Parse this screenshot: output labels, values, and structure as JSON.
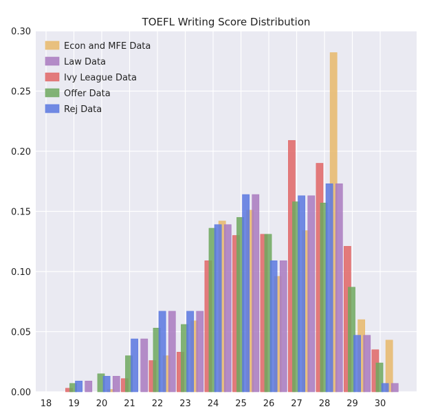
{
  "chart_data": {
    "type": "bar",
    "title": "TOEFL Writing Score Distribution",
    "xlabel": "",
    "ylabel": "",
    "x_ticks": [
      "18",
      "19",
      "20",
      "21",
      "22",
      "23",
      "24",
      "25",
      "26",
      "27",
      "28",
      "29",
      "30"
    ],
    "y_ticks": [
      "0.00",
      "0.05",
      "0.10",
      "0.15",
      "0.20",
      "0.25",
      "0.30"
    ],
    "ylim": [
      0,
      0.3
    ],
    "grid": true,
    "legend_position": "top-left",
    "series": [
      {
        "name": "Econ and MFE Data",
        "color": "#E8B96B",
        "points": [
          {
            "x": 20.2,
            "y": 0.002
          },
          {
            "x": 22.2,
            "y": 0.03
          },
          {
            "x": 23.2,
            "y": 0.059
          },
          {
            "x": 24.2,
            "y": 0.142
          },
          {
            "x": 25.2,
            "y": 0.151
          },
          {
            "x": 26.2,
            "y": 0.096
          },
          {
            "x": 27.2,
            "y": 0.134
          },
          {
            "x": 28.2,
            "y": 0.282
          },
          {
            "x": 29.2,
            "y": 0.06
          },
          {
            "x": 30.2,
            "y": 0.043
          }
        ]
      },
      {
        "name": "Law Data",
        "color": "#A97ABF",
        "points": [
          {
            "x": 19.4,
            "y": 0.009
          },
          {
            "x": 20.4,
            "y": 0.013
          },
          {
            "x": 21.4,
            "y": 0.044
          },
          {
            "x": 22.4,
            "y": 0.067
          },
          {
            "x": 23.4,
            "y": 0.067
          },
          {
            "x": 24.4,
            "y": 0.139
          },
          {
            "x": 25.4,
            "y": 0.164
          },
          {
            "x": 26.4,
            "y": 0.109
          },
          {
            "x": 27.4,
            "y": 0.163
          },
          {
            "x": 28.4,
            "y": 0.173
          },
          {
            "x": 29.4,
            "y": 0.047
          },
          {
            "x": 30.4,
            "y": 0.007
          }
        ]
      },
      {
        "name": "Ivy League Data",
        "color": "#E06666",
        "points": [
          {
            "x": 18.7,
            "y": 0.003
          },
          {
            "x": 20.7,
            "y": 0.011
          },
          {
            "x": 21.7,
            "y": 0.026
          },
          {
            "x": 22.7,
            "y": 0.033
          },
          {
            "x": 23.7,
            "y": 0.109
          },
          {
            "x": 24.7,
            "y": 0.13
          },
          {
            "x": 25.7,
            "y": 0.131
          },
          {
            "x": 26.7,
            "y": 0.209
          },
          {
            "x": 27.7,
            "y": 0.19
          },
          {
            "x": 28.7,
            "y": 0.121
          },
          {
            "x": 29.7,
            "y": 0.035
          }
        ]
      },
      {
        "name": "Offer Data",
        "color": "#6FA85F",
        "points": [
          {
            "x": 18.85,
            "y": 0.007
          },
          {
            "x": 19.85,
            "y": 0.015
          },
          {
            "x": 20.85,
            "y": 0.03
          },
          {
            "x": 21.85,
            "y": 0.053
          },
          {
            "x": 22.85,
            "y": 0.056
          },
          {
            "x": 23.85,
            "y": 0.136
          },
          {
            "x": 24.85,
            "y": 0.145
          },
          {
            "x": 25.85,
            "y": 0.131
          },
          {
            "x": 26.85,
            "y": 0.158
          },
          {
            "x": 27.85,
            "y": 0.157
          },
          {
            "x": 28.85,
            "y": 0.087
          },
          {
            "x": 29.85,
            "y": 0.024
          }
        ]
      },
      {
        "name": "Rej Data",
        "color": "#5B78E0",
        "points": [
          {
            "x": 19.05,
            "y": 0.009
          },
          {
            "x": 20.05,
            "y": 0.013
          },
          {
            "x": 21.05,
            "y": 0.044
          },
          {
            "x": 22.05,
            "y": 0.067
          },
          {
            "x": 23.05,
            "y": 0.067
          },
          {
            "x": 24.05,
            "y": 0.139
          },
          {
            "x": 25.05,
            "y": 0.164
          },
          {
            "x": 26.05,
            "y": 0.109
          },
          {
            "x": 27.05,
            "y": 0.163
          },
          {
            "x": 28.05,
            "y": 0.173
          },
          {
            "x": 29.05,
            "y": 0.047
          },
          {
            "x": 30.05,
            "y": 0.007
          }
        ]
      }
    ]
  }
}
